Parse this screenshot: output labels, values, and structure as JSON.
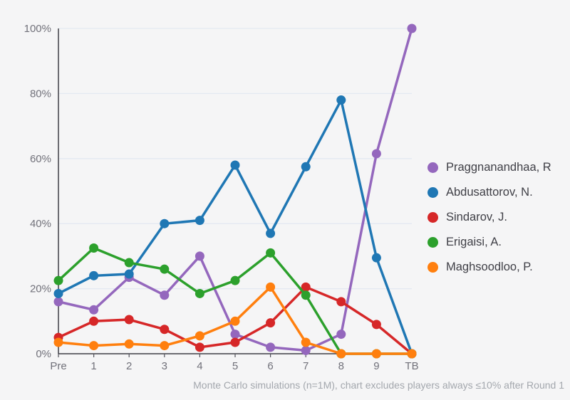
{
  "chart_data": {
    "type": "line",
    "title": "",
    "categories": [
      "Pre",
      "1",
      "2",
      "3",
      "4",
      "5",
      "6",
      "7",
      "8",
      "9",
      "TB"
    ],
    "xlabel": "",
    "ylabel": "",
    "ylim": [
      0,
      100
    ],
    "yticks": [
      0,
      20,
      40,
      60,
      80,
      100
    ],
    "ytick_labels": [
      "0%",
      "20%",
      "40%",
      "60%",
      "80%",
      "100%"
    ],
    "grid": true,
    "legend_position": "right",
    "series": [
      {
        "name": "Praggnanandhaa, R",
        "color": "#9467bd",
        "values": [
          16,
          13.5,
          23.5,
          18,
          30,
          6,
          2,
          1,
          6,
          61.5,
          100
        ]
      },
      {
        "name": "Abdusattorov, N.",
        "color": "#1f77b4",
        "values": [
          18.5,
          24,
          24.5,
          40,
          41,
          58,
          37,
          57.5,
          78,
          29.5,
          0
        ]
      },
      {
        "name": "Sindarov, J.",
        "color": "#d62728",
        "values": [
          5,
          10,
          10.5,
          7.5,
          2,
          3.5,
          9.5,
          20.5,
          16,
          9,
          0
        ]
      },
      {
        "name": "Erigaisi, A.",
        "color": "#2ca02c",
        "values": [
          22.5,
          32.5,
          28,
          26,
          18.5,
          22.5,
          31,
          18,
          0,
          0,
          0
        ]
      },
      {
        "name": "Maghsoodloo, P.",
        "color": "#ff7f0e",
        "values": [
          3.5,
          2.5,
          3,
          2.5,
          5.5,
          10,
          20.5,
          3.5,
          0,
          0,
          0
        ]
      }
    ],
    "caption": "Monte Carlo simulations (n=1M), chart excludes players always ≤10% after Round 1",
    "colors": {
      "background": "#f5f5f6",
      "gridline": "#e4e9f1",
      "axis": "#3f3f46",
      "tick": "#52525b",
      "tick_label": "#71717a",
      "legend_text": "#3f3f46",
      "caption_text": "#a3a7ad"
    }
  }
}
